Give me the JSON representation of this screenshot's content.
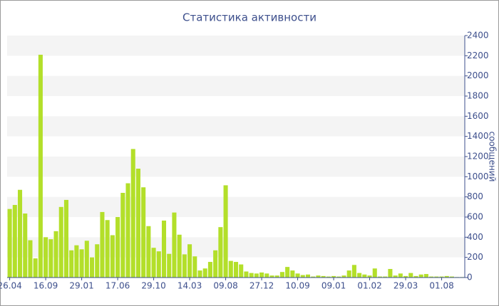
{
  "chart_data": {
    "type": "bar",
    "title": "Статистика активности",
    "y_label": "сообщений",
    "categories": [
      "26.04",
      null,
      null,
      null,
      null,
      null,
      null,
      "16.09",
      null,
      null,
      null,
      null,
      null,
      null,
      "29.01",
      null,
      null,
      null,
      null,
      null,
      null,
      "17.06",
      null,
      null,
      null,
      null,
      null,
      null,
      "29.10",
      null,
      null,
      null,
      null,
      null,
      null,
      "14.03",
      null,
      null,
      null,
      null,
      null,
      null,
      "09.08",
      null,
      null,
      null,
      null,
      null,
      null,
      "27.12",
      null,
      null,
      null,
      null,
      null,
      null,
      "10.09",
      null,
      null,
      null,
      null,
      null,
      null,
      "09.01",
      null,
      null,
      null,
      null,
      null,
      null,
      "01.02",
      null,
      null,
      null,
      null,
      null,
      null,
      "29.03",
      null,
      null,
      null,
      null,
      null,
      null,
      "01.08",
      null,
      null,
      null,
      null
    ],
    "values": [
      680,
      720,
      870,
      635,
      370,
      190,
      2210,
      400,
      380,
      460,
      700,
      770,
      270,
      320,
      280,
      365,
      200,
      330,
      650,
      570,
      420,
      600,
      840,
      935,
      1275,
      1080,
      895,
      510,
      295,
      260,
      565,
      235,
      645,
      425,
      230,
      330,
      210,
      70,
      90,
      155,
      270,
      500,
      915,
      165,
      155,
      130,
      60,
      45,
      40,
      50,
      40,
      20,
      20,
      55,
      105,
      70,
      40,
      25,
      30,
      10,
      20,
      15,
      10,
      15,
      10,
      20,
      70,
      125,
      45,
      30,
      20,
      90,
      10,
      10,
      85,
      20,
      40,
      15,
      45,
      15,
      30,
      35,
      10,
      10,
      10,
      15,
      10,
      5,
      5
    ],
    "color": "#b3df2a",
    "ylim": [
      0,
      2400
    ],
    "yticks": [
      0,
      200,
      400,
      600,
      800,
      1000,
      1200,
      1400,
      1600,
      1800,
      2000,
      2200,
      2400
    ],
    "grid": true
  }
}
